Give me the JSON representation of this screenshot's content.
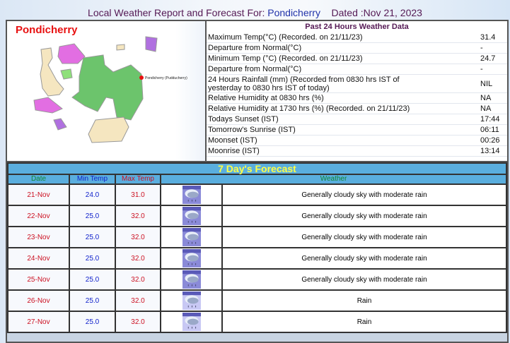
{
  "header": {
    "prefix": "Local Weather Report and Forecast For:",
    "location": "Pondicherry",
    "dated": "Dated :Nov 21, 2023"
  },
  "map": {
    "title": "Pondicherry",
    "city_label": "Pondicherry (Pudducherry)",
    "colors": {
      "green": "#6cc46c",
      "pink": "#e26ee2",
      "beige": "#f5e6c0",
      "purple": "#b070e0"
    }
  },
  "past24": {
    "title": "Past 24 Hours Weather Data",
    "rows": [
      {
        "label": "Maximum Temp(°C) (Recorded. on 21/11/23)",
        "value": "31.4"
      },
      {
        "label": "Departure from Normal(°C)",
        "value": "-"
      },
      {
        "label": "Minimum Temp (°C) (Recorded. on 21/11/23)",
        "value": "24.7"
      },
      {
        "label": "Departure from Normal(°C)",
        "value": "-"
      },
      {
        "label": "24 Hours Rainfall (mm) (Recorded from 0830 hrs IST of yesterday to 0830 hrs IST of today)",
        "value": "NIL"
      },
      {
        "label": "Relative Humidity at 0830 hrs (%)",
        "value": "NA"
      },
      {
        "label": "Relative Humidity at 1730 hrs (%) (Recorded. on 21/11/23)",
        "value": "NA"
      },
      {
        "label": "Todays Sunset (IST)",
        "value": "17:44"
      },
      {
        "label": "Tomorrow's Sunrise (IST)",
        "value": "06:11"
      },
      {
        "label": "Moonset (IST)",
        "value": "00:26"
      },
      {
        "label": "Moonrise (IST)",
        "value": "13:14"
      }
    ]
  },
  "forecast": {
    "title": "7 Day's Forecast",
    "columns": [
      "Date",
      "Min Temp",
      "Max Temp",
      "Weather"
    ],
    "rows": [
      {
        "date": "21-Nov",
        "min": "24.0",
        "max": "31.0",
        "icon": "moderate-rain-icon",
        "weather": "Generally cloudy sky with moderate rain"
      },
      {
        "date": "22-Nov",
        "min": "25.0",
        "max": "32.0",
        "icon": "moderate-rain-icon",
        "weather": "Generally cloudy sky with moderate rain"
      },
      {
        "date": "23-Nov",
        "min": "25.0",
        "max": "32.0",
        "icon": "moderate-rain-icon",
        "weather": "Generally cloudy sky with moderate rain"
      },
      {
        "date": "24-Nov",
        "min": "25.0",
        "max": "32.0",
        "icon": "moderate-rain-icon",
        "weather": "Generally cloudy sky with moderate rain"
      },
      {
        "date": "25-Nov",
        "min": "25.0",
        "max": "32.0",
        "icon": "moderate-rain-icon",
        "weather": "Generally cloudy sky with moderate rain"
      },
      {
        "date": "26-Nov",
        "min": "25.0",
        "max": "32.0",
        "icon": "rain-icon",
        "weather": "Rain"
      },
      {
        "date": "27-Nov",
        "min": "25.0",
        "max": "32.0",
        "icon": "rain-icon",
        "weather": "Rain"
      }
    ]
  }
}
